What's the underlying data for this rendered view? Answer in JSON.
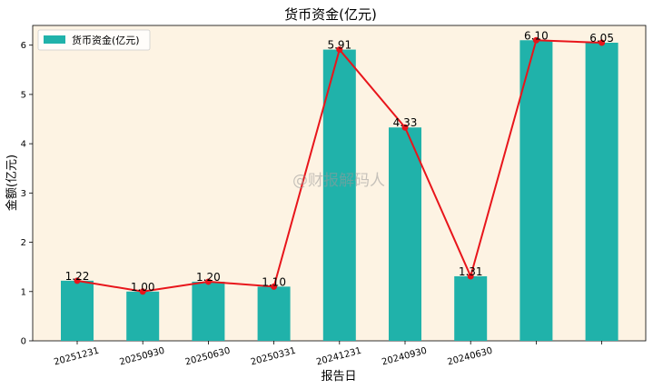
{
  "chart_data": {
    "type": "bar",
    "title": "货币资金(亿元)",
    "xlabel": "报告日",
    "ylabel": "金额(亿元)",
    "categories": [
      "20251231",
      "20250930",
      "20250630",
      "20250331",
      "20241231",
      "20240930",
      "20240630",
      "",
      ""
    ],
    "values": [
      1.22,
      1.0,
      1.2,
      1.1,
      5.91,
      4.33,
      1.31,
      6.1,
      6.05
    ],
    "data_labels": [
      "1.22",
      "1.00",
      "1.20",
      "1.10",
      "5.91",
      "4.33",
      "1.31",
      "6.10",
      "6.05"
    ],
    "series": [
      {
        "name": "货币资金(亿元)",
        "kind": "bar",
        "color": "#20b2aa"
      },
      {
        "kind": "line",
        "color": "#e8151b"
      }
    ],
    "ylim": [
      0,
      6.4
    ],
    "yticks": [
      "0",
      "1",
      "2",
      "3",
      "4",
      "5",
      "6"
    ],
    "legend_position": "top-left",
    "grid": false,
    "plot_background": "#fdf3e3"
  },
  "watermark": "@财报解码人"
}
